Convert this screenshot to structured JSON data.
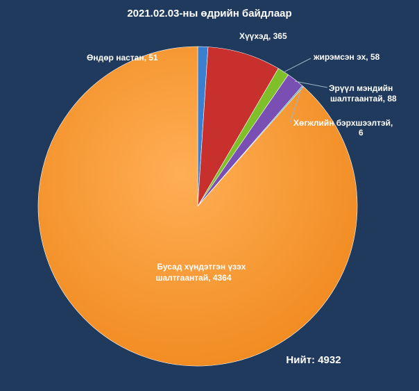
{
  "chart_data": {
    "type": "pie",
    "title": "2021.02.03-ны өдрийн байдлаар",
    "slices": [
      {
        "label": "Өндөр настан, 51",
        "value": 51,
        "color": "#3a7fd0"
      },
      {
        "label": "Хүүхэд, 365",
        "value": 365,
        "color": "#c8302e"
      },
      {
        "label": "жирэмсэн эх, 58",
        "value": 58,
        "color": "#7fbf2a"
      },
      {
        "label": "Эрүүл мэндийн шалтгаантай, 88",
        "value": 88,
        "color": "#7a4fb3"
      },
      {
        "label": "Хөгжлийн бэрхшээлтэй, 6",
        "value": 6,
        "color": "#2aa0b8"
      },
      {
        "label": "Бусад хүндэтгэн үзэх шалтгаантай, 4364",
        "value": 4364,
        "color": "#f5922a"
      }
    ],
    "total_label": "Нийт: 4932"
  }
}
